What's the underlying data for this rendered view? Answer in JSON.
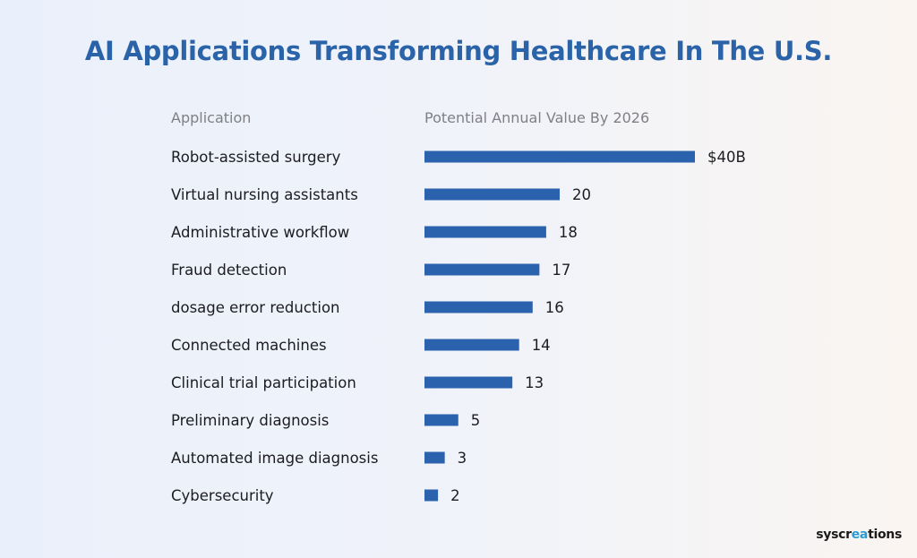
{
  "title": "AI Applications Transforming Healthcare In The U.S.",
  "columns": {
    "application": "Application",
    "value": "Potential Annual Value By 2026"
  },
  "brand": {
    "prefix": "syscr",
    "accent": "ea",
    "suffix": "tions"
  },
  "colors": {
    "bar": "#2b62ad",
    "title": "#2b63a8",
    "brand_accent": "#2a9bd3"
  },
  "chart_data": {
    "type": "bar",
    "orientation": "horizontal",
    "title": "AI Applications Transforming Healthcare In The U.S.",
    "categories": [
      "Robot-assisted surgery",
      "Virtual nursing assistants",
      "Administrative workflow",
      "Fraud detection",
      "dosage error reduction",
      "Connected machines",
      "Clinical trial participation",
      "Preliminary diagnosis",
      "Automated image diagnosis",
      "Cybersecurity"
    ],
    "values": [
      40,
      20,
      18,
      17,
      16,
      14,
      13,
      5,
      3,
      2
    ],
    "value_labels": [
      "$40B",
      "20",
      "18",
      "17",
      "16",
      "14",
      "13",
      "5",
      "3",
      "2"
    ],
    "xlim": [
      0,
      40
    ],
    "grid": false,
    "legend": "none"
  }
}
